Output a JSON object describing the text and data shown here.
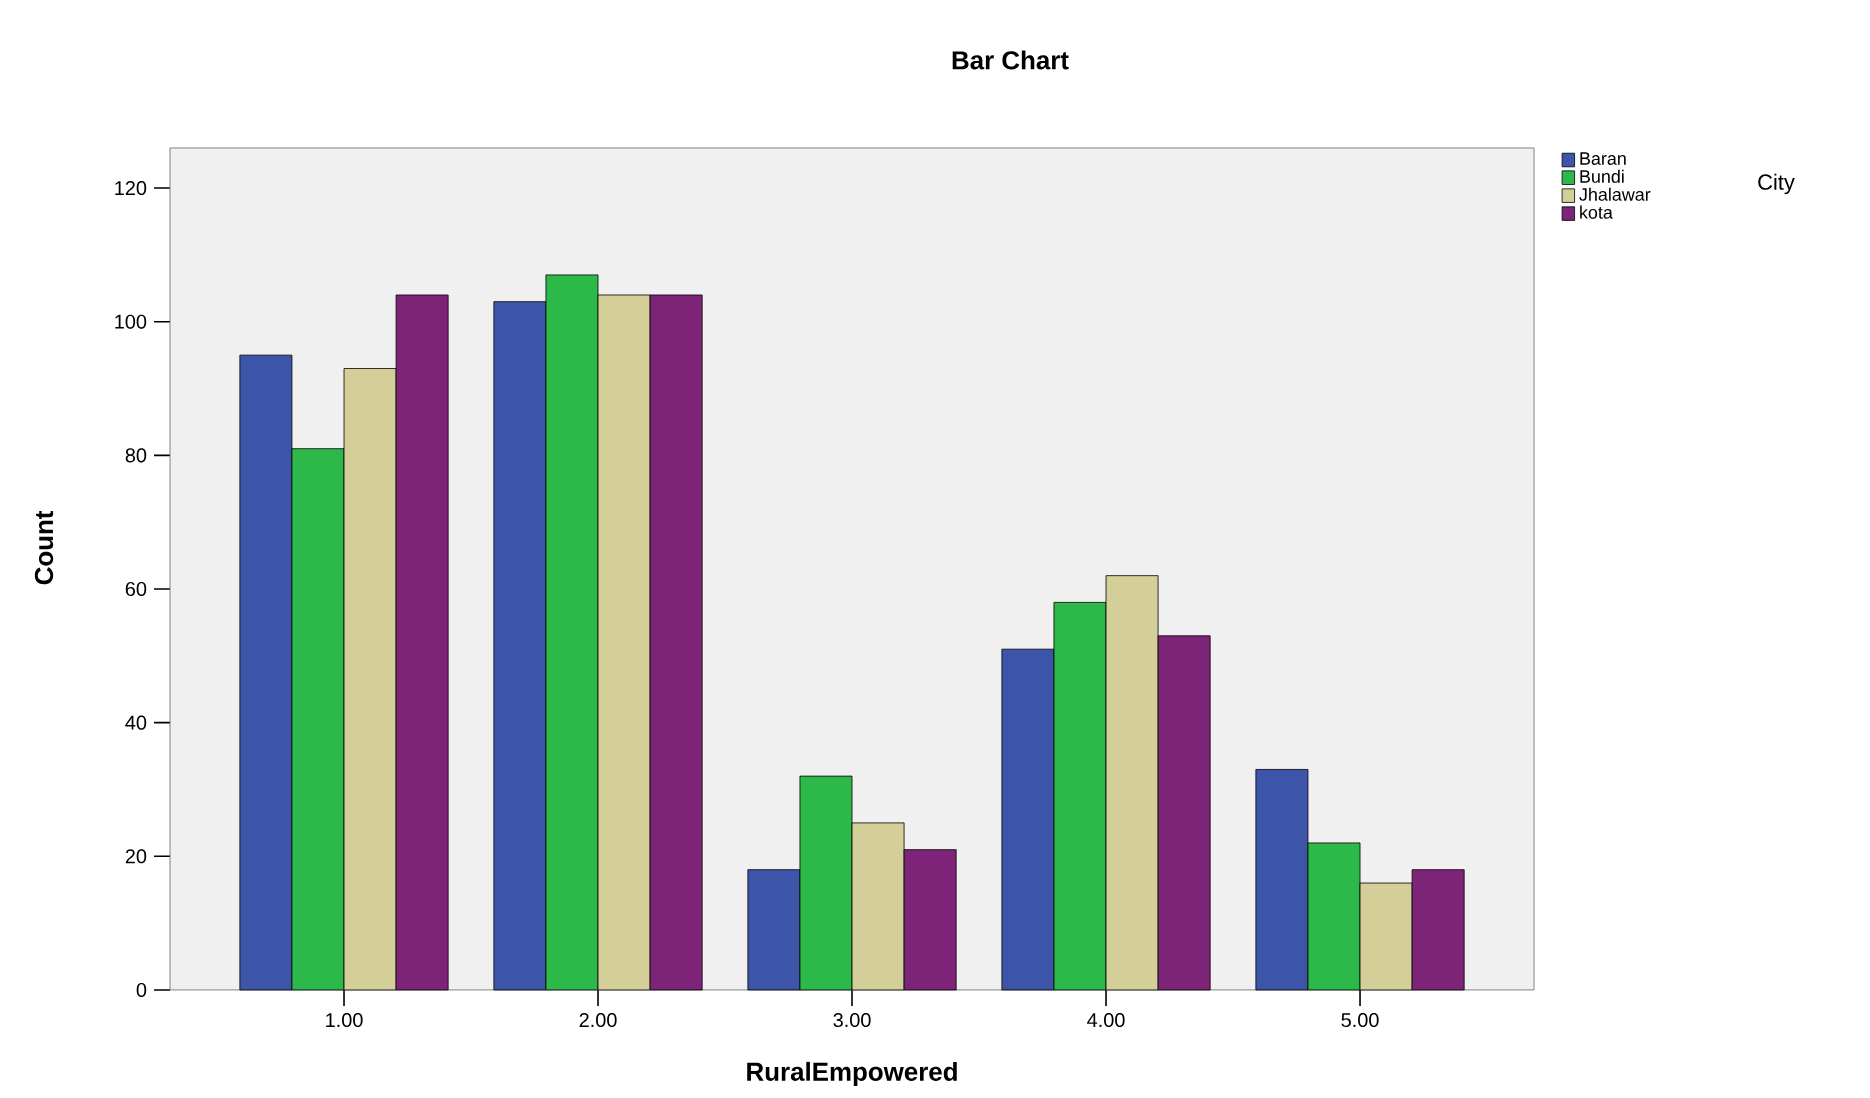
{
  "chart_data": {
    "type": "bar",
    "title": "Bar Chart",
    "xlabel": "RuralEmpowered",
    "ylabel": "Count",
    "legend_title": "City",
    "categories": [
      "1.00",
      "2.00",
      "3.00",
      "4.00",
      "5.00"
    ],
    "series": [
      {
        "name": "Baran",
        "color": "#3d55a8",
        "values": [
          95,
          103,
          18,
          51,
          33
        ]
      },
      {
        "name": "Bundi",
        "color": "#2db84a",
        "values": [
          81,
          107,
          32,
          58,
          22
        ]
      },
      {
        "name": "Jhalawar",
        "color": "#d4cf98",
        "values": [
          93,
          104,
          25,
          62,
          16
        ]
      },
      {
        "name": "kota",
        "color": "#7d2478",
        "values": [
          104,
          104,
          21,
          53,
          18
        ]
      }
    ],
    "ylim": [
      0,
      126
    ],
    "yticks": [
      0,
      20,
      40,
      60,
      80,
      100,
      120
    ],
    "grid": false,
    "legend": "top right"
  }
}
